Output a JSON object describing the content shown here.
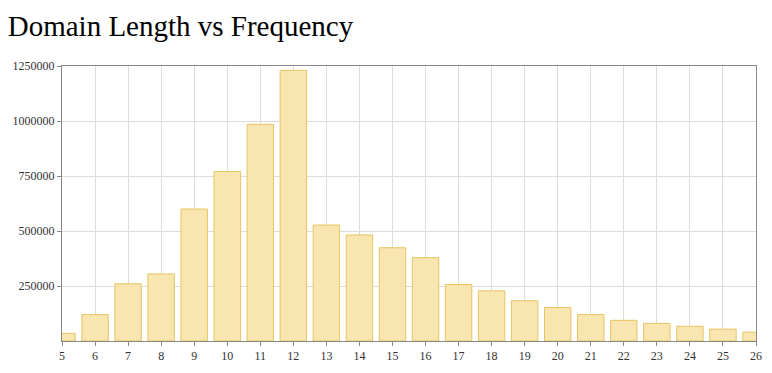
{
  "chart_data": {
    "type": "bar",
    "title": "Domain Length vs Frequency",
    "x": [
      5,
      6,
      7,
      8,
      9,
      10,
      11,
      12,
      13,
      14,
      15,
      16,
      17,
      18,
      19,
      20,
      21,
      22,
      23,
      24,
      25,
      26
    ],
    "values": [
      35000,
      120000,
      260000,
      305000,
      600000,
      770000,
      985000,
      1230000,
      527000,
      482000,
      424000,
      379000,
      257000,
      228000,
      183000,
      152000,
      120000,
      94000,
      80000,
      67000,
      54000,
      40000
    ],
    "color": "#f9e5b0",
    "xlim": [
      5,
      26
    ],
    "xticks": [
      5,
      6,
      7,
      8,
      9,
      10,
      11,
      12,
      13,
      14,
      15,
      16,
      17,
      18,
      19,
      20,
      21,
      22,
      23,
      24,
      25,
      26
    ],
    "ylim": [
      0,
      1250000
    ],
    "yticks": [
      250000,
      500000,
      750000,
      1000000,
      1250000
    ],
    "grid": true
  }
}
